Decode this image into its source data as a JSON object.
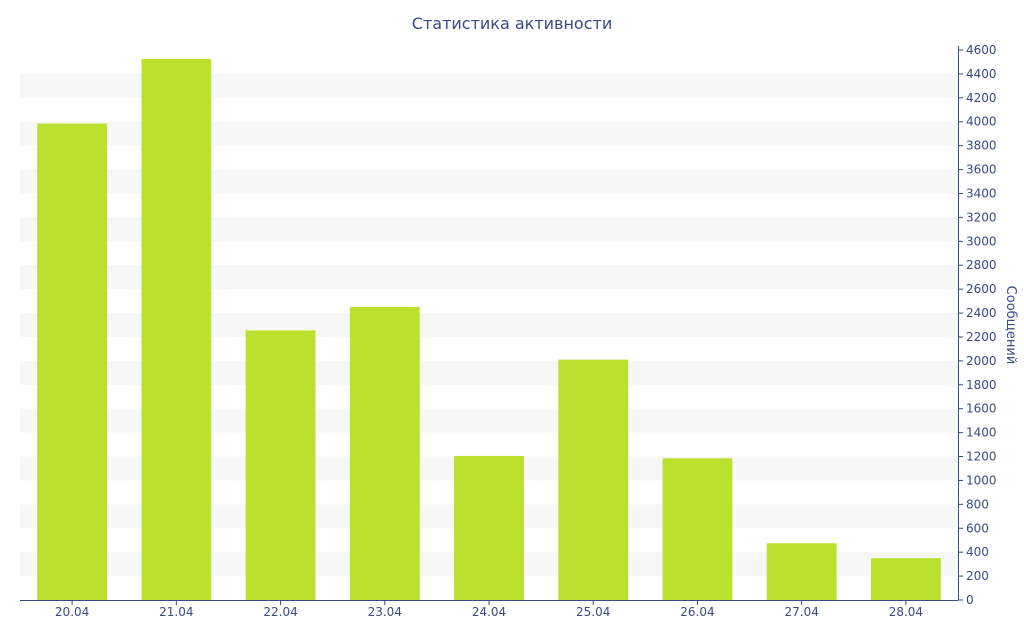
{
  "chart_data": {
    "type": "bar",
    "title": "Статистика активности",
    "ylabel": "Сообщений",
    "xlabel": "",
    "y_axis_position": "right",
    "grid": "alternating horizontal bands",
    "legend": "none",
    "ylim": [
      0,
      4600
    ],
    "y_ticks": [
      0,
      200,
      400,
      600,
      800,
      1000,
      1200,
      1400,
      1600,
      1800,
      2000,
      2200,
      2400,
      2600,
      2800,
      3000,
      3200,
      3400,
      3600,
      3800,
      4000,
      4200,
      4400,
      4600
    ],
    "categories": [
      "20.04",
      "21.04",
      "22.04",
      "23.04",
      "24.04",
      "25.04",
      "26.04",
      "27.04",
      "28.04"
    ],
    "values": [
      3985,
      4525,
      2255,
      2450,
      1205,
      2010,
      1185,
      475,
      350
    ]
  },
  "colors": {
    "bar": "#bbe12f",
    "band": "#f7f7f7",
    "axis": "#3a4a86",
    "text": "#3a4a86"
  }
}
